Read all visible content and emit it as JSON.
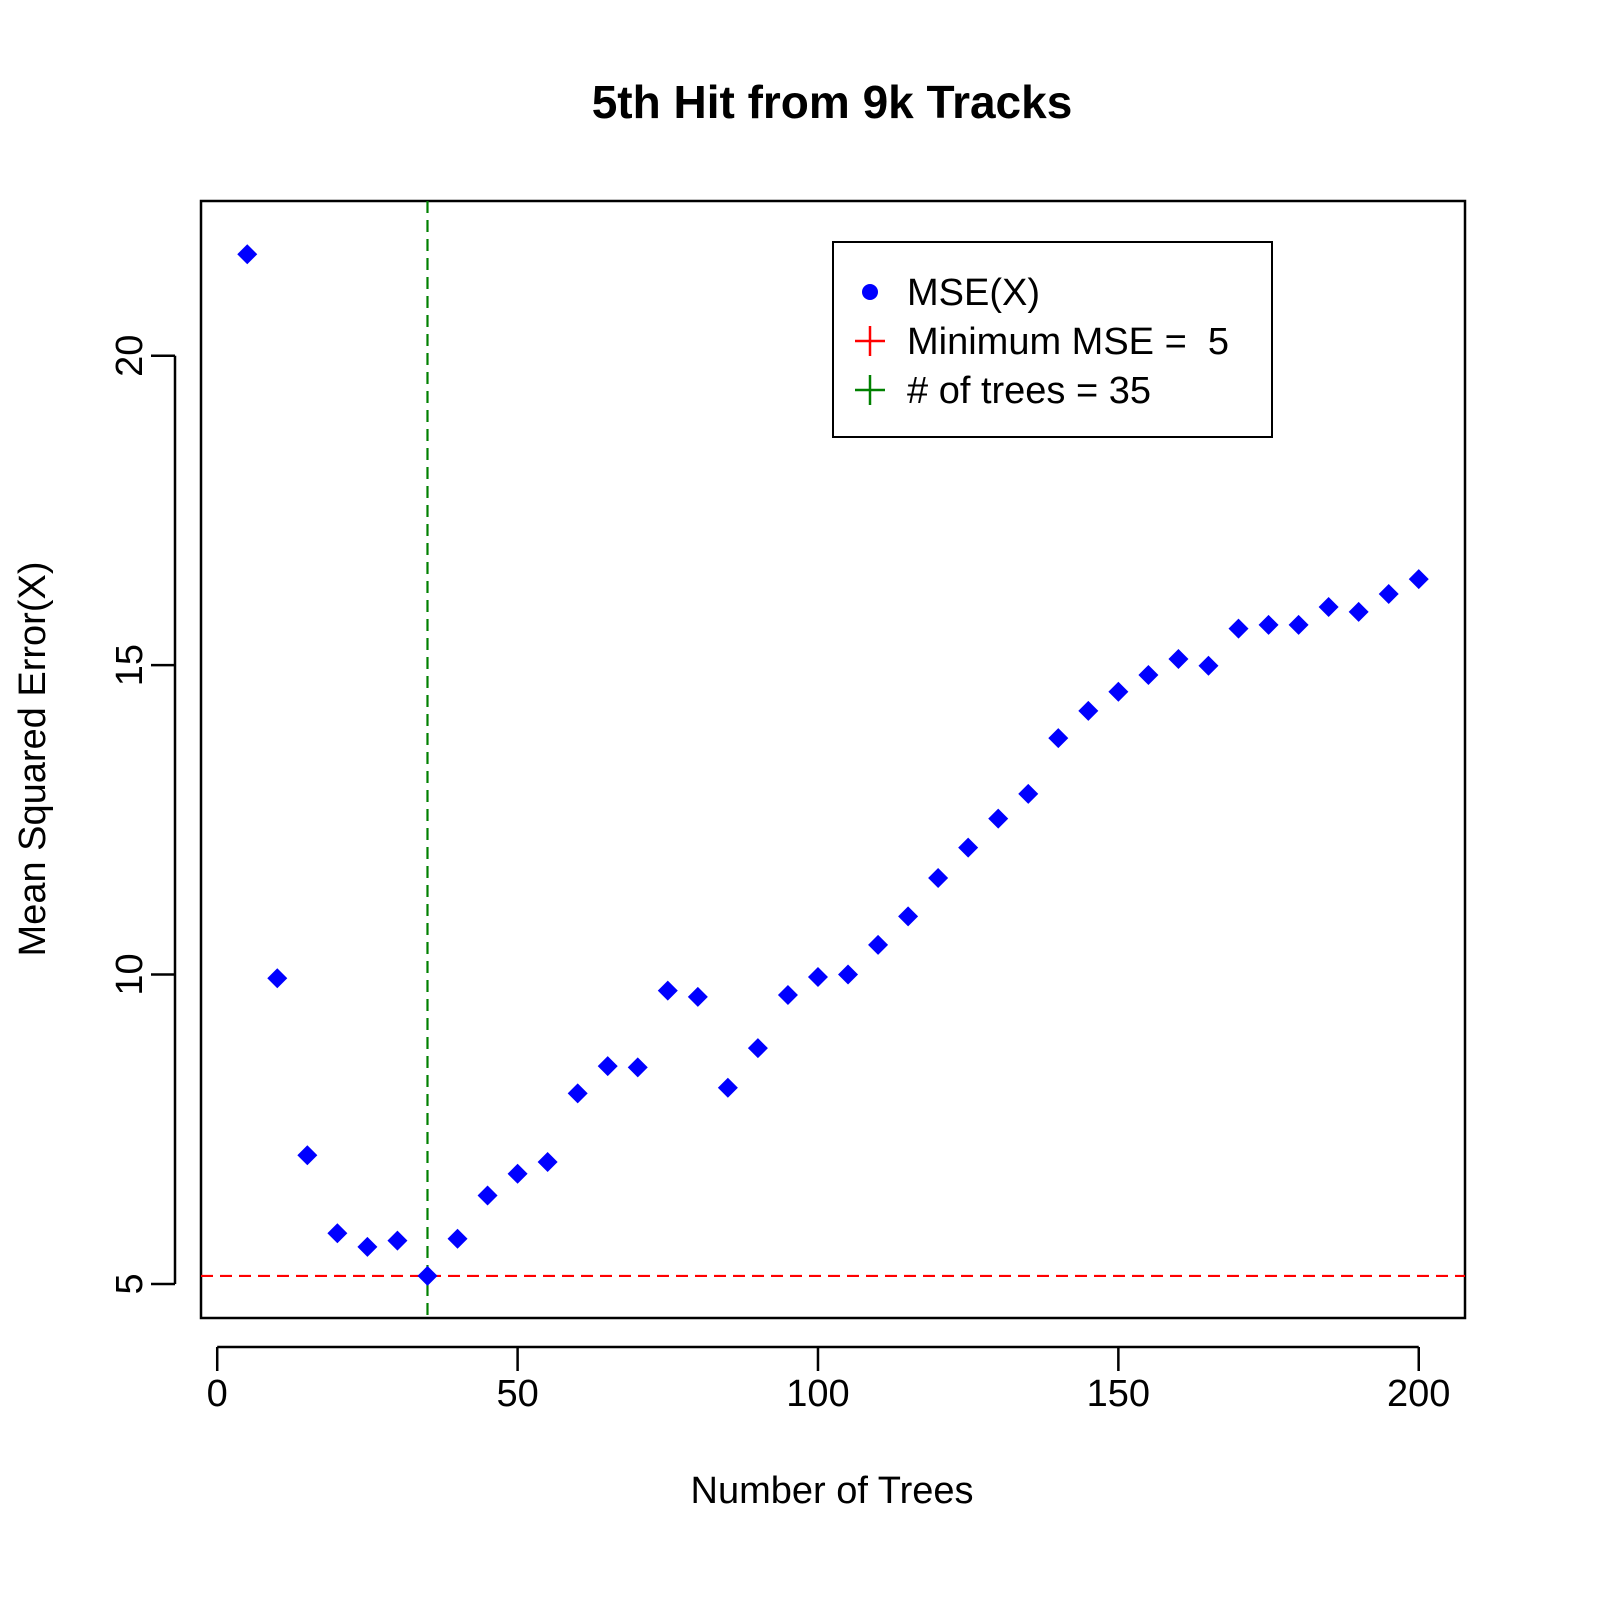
{
  "chart_data": {
    "type": "scatter",
    "title": "5th Hit from 9k Tracks",
    "xlabel": "Number of Trees",
    "ylabel": "Mean Squared Error(X)",
    "xlim": [
      -2.7,
      207.7
    ],
    "ylim": [
      4.45,
      22.5
    ],
    "x_ticks": [
      0,
      50,
      100,
      150,
      200
    ],
    "x_tick_labels": [
      "0",
      "50",
      "100",
      "150",
      "200"
    ],
    "y_ticks": [
      5,
      10,
      15,
      20
    ],
    "y_tick_labels": [
      "5",
      "10",
      "15",
      "20"
    ],
    "grid": false,
    "legend_position": "top-right",
    "series": [
      {
        "name": "MSE(X)",
        "color": "#0000ff",
        "marker": "diamond",
        "x": [
          5,
          10,
          15,
          20,
          25,
          30,
          35,
          40,
          45,
          50,
          55,
          60,
          65,
          70,
          75,
          80,
          85,
          90,
          95,
          100,
          105,
          110,
          115,
          120,
          125,
          130,
          135,
          140,
          145,
          150,
          155,
          160,
          165,
          170,
          175,
          180,
          185,
          190,
          195,
          200
        ],
        "y": [
          21.64,
          9.94,
          7.08,
          5.82,
          5.6,
          5.7,
          5.13,
          5.73,
          6.43,
          6.78,
          6.97,
          8.08,
          8.52,
          8.5,
          9.74,
          9.64,
          8.17,
          8.81,
          9.67,
          9.96,
          10.0,
          10.48,
          10.94,
          11.56,
          12.05,
          12.52,
          12.92,
          13.82,
          14.26,
          14.57,
          14.84,
          15.1,
          14.99,
          15.59,
          15.65,
          15.65,
          15.94,
          15.86,
          16.15,
          16.39
        ]
      }
    ],
    "reference_lines": [
      {
        "orientation": "horizontal",
        "value": 5.13,
        "color": "#ff0000",
        "style": "dashed"
      },
      {
        "orientation": "vertical",
        "value": 35,
        "color": "#008000",
        "style": "dashed"
      }
    ],
    "legend": [
      {
        "label": "MSE(X)",
        "symbol": "dot",
        "color": "#0000ff"
      },
      {
        "label": "Minimum MSE =  5",
        "symbol": "plus",
        "color": "#ff0000"
      },
      {
        "label": "# of trees = 35",
        "symbol": "plus",
        "color": "#008000"
      }
    ]
  }
}
